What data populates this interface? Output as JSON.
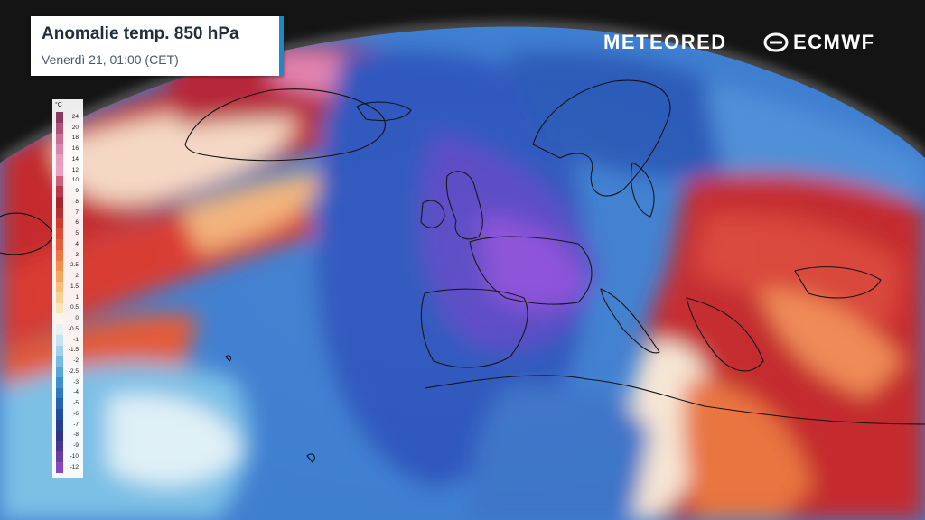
{
  "title": {
    "main": "Anomalie temp. 850 hPa",
    "subtitle": "Venerdì 21, 01:00 (CET)"
  },
  "brands": {
    "meteored": "METEORED",
    "ecmwf": "ECMWF"
  },
  "legend": {
    "unit": "°C",
    "labels": [
      "24",
      "20",
      "18",
      "16",
      "14",
      "12",
      "10",
      "9",
      "8",
      "7",
      "6",
      "5",
      "4",
      "3",
      "2.5",
      "2",
      "1.5",
      "1",
      "0.5",
      "0",
      "-0.5",
      "-1",
      "-1.5",
      "-2",
      "-2.5",
      "-3",
      "-4",
      "-5",
      "-6",
      "-7",
      "-8",
      "-9",
      "-10",
      "-12"
    ],
    "colors": [
      "#8c3a5c",
      "#b0527a",
      "#cc6f95",
      "#dc86aa",
      "#e79bbd",
      "#ee9ec0",
      "#d0607a",
      "#b83a4a",
      "#a4262e",
      "#b72e2e",
      "#cf3a30",
      "#de4a32",
      "#e85c38",
      "#ef7440",
      "#f28e4c",
      "#f4a65c",
      "#f6bd74",
      "#f8d290",
      "#fae6b4",
      "#fdf6e8",
      "#e6f1f7",
      "#c4e3f0",
      "#9fd1ea",
      "#76bde4",
      "#57a7dc",
      "#3e8fd2",
      "#2e78c6",
      "#2662b6",
      "#204ea4",
      "#233e92",
      "#2f3489",
      "#4a3592",
      "#6a3ca6",
      "#8a46bc"
    ]
  },
  "map_palette": {
    "cold_core": "#8a4fd8",
    "cold": "#2f56bd",
    "cool": "#5aa2df",
    "neutral": "#f6f0e8",
    "warm": "#ec7a3f",
    "hot": "#c42a2e",
    "pink_hot": "#e283b0",
    "coastline": "#111111"
  }
}
